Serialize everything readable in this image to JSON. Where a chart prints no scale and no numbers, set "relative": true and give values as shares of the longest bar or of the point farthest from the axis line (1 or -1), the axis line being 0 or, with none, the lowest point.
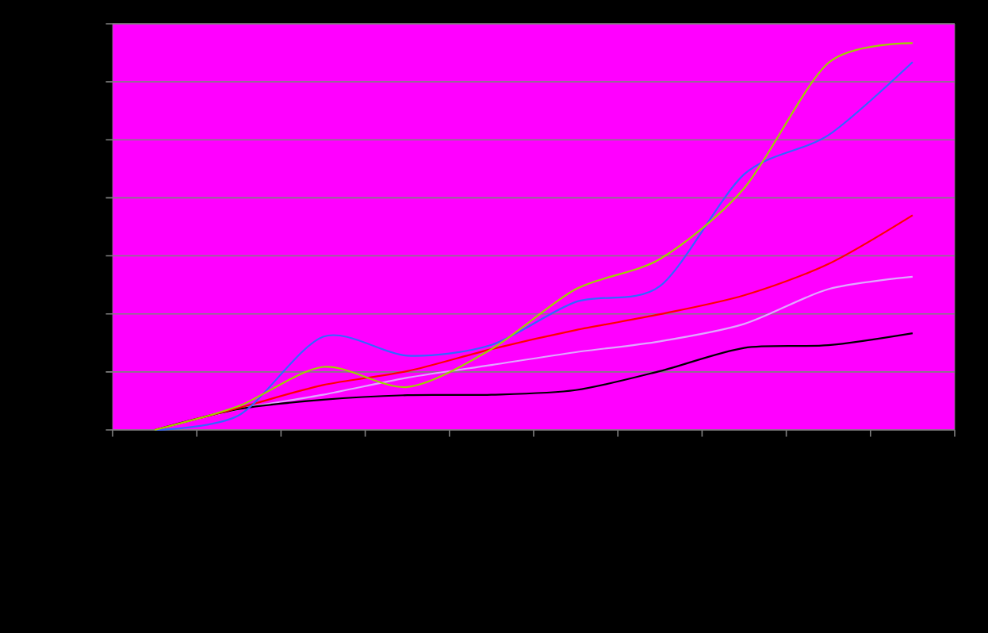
{
  "chart_data": {
    "type": "line",
    "relative": true,
    "grid": "y",
    "line_style": "solid",
    "marker": "none",
    "categories": [
      null,
      null,
      null,
      null,
      null,
      null,
      null,
      null,
      null,
      null
    ],
    "series": [
      {
        "color": "#e0a8ff",
        "values": [
          0,
          0.054,
          0.091,
          0.135,
          0.168,
          0.201,
          0.229,
          0.274,
          0.364,
          0.396
        ]
      },
      {
        "color": "#000000",
        "values": [
          0,
          0.054,
          0.078,
          0.09,
          0.091,
          0.103,
          0.152,
          0.212,
          0.219,
          0.25
        ]
      },
      {
        "color": "#ff0000",
        "values": [
          0,
          0.057,
          0.116,
          0.152,
          0.209,
          0.258,
          0.299,
          0.348,
          0.429,
          0.555
        ]
      },
      {
        "color": "#3366ff",
        "values": [
          0,
          0.038,
          0.241,
          0.192,
          0.22,
          0.331,
          0.372,
          0.661,
          0.762,
          0.951
        ]
      },
      {
        "color": "#a0d000",
        "values": [
          0,
          0.062,
          0.163,
          0.111,
          0.209,
          0.364,
          0.442,
          0.625,
          0.949,
          1
        ]
      }
    ]
  }
}
